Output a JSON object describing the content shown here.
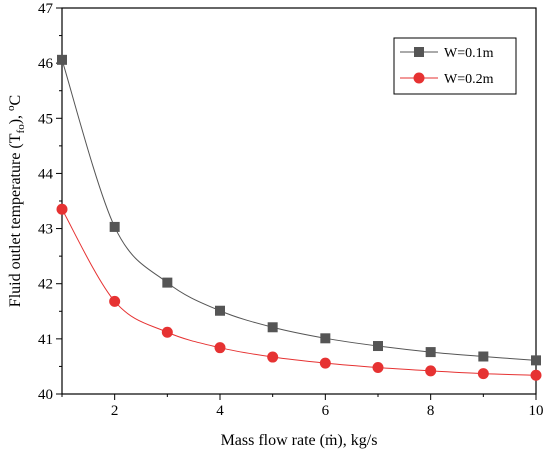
{
  "chart_data": {
    "type": "line",
    "title": "",
    "xlabel": "Mass flow rate (ṁ), kg/s",
    "ylabel": "Fluid outlet temperature (T",
    "ylabel_sub": "fo",
    "ylabel_tail": "), ",
    "ylabel_sup": "o",
    "ylabel_unit": "C",
    "xlim": [
      1,
      10
    ],
    "ylim": [
      40,
      47
    ],
    "xticks": [
      "2",
      "4",
      "6",
      "8",
      "10"
    ],
    "yticks": [
      "40",
      "41",
      "42",
      "43",
      "44",
      "45",
      "46",
      "47"
    ],
    "grid": false,
    "legend_position": "top-right",
    "x": [
      1,
      2,
      3,
      4,
      5,
      6,
      7,
      8,
      9,
      10
    ],
    "series": [
      {
        "name": "W=0.1m",
        "color": "#555555",
        "marker": "square",
        "values": [
          46.06,
          43.03,
          42.02,
          41.51,
          41.21,
          41.01,
          40.87,
          40.76,
          40.68,
          40.61
        ]
      },
      {
        "name": "W=0.2m",
        "color": "#e63232",
        "marker": "circle",
        "values": [
          43.35,
          41.68,
          41.12,
          40.84,
          40.67,
          40.56,
          40.48,
          40.42,
          40.37,
          40.34
        ]
      }
    ]
  }
}
